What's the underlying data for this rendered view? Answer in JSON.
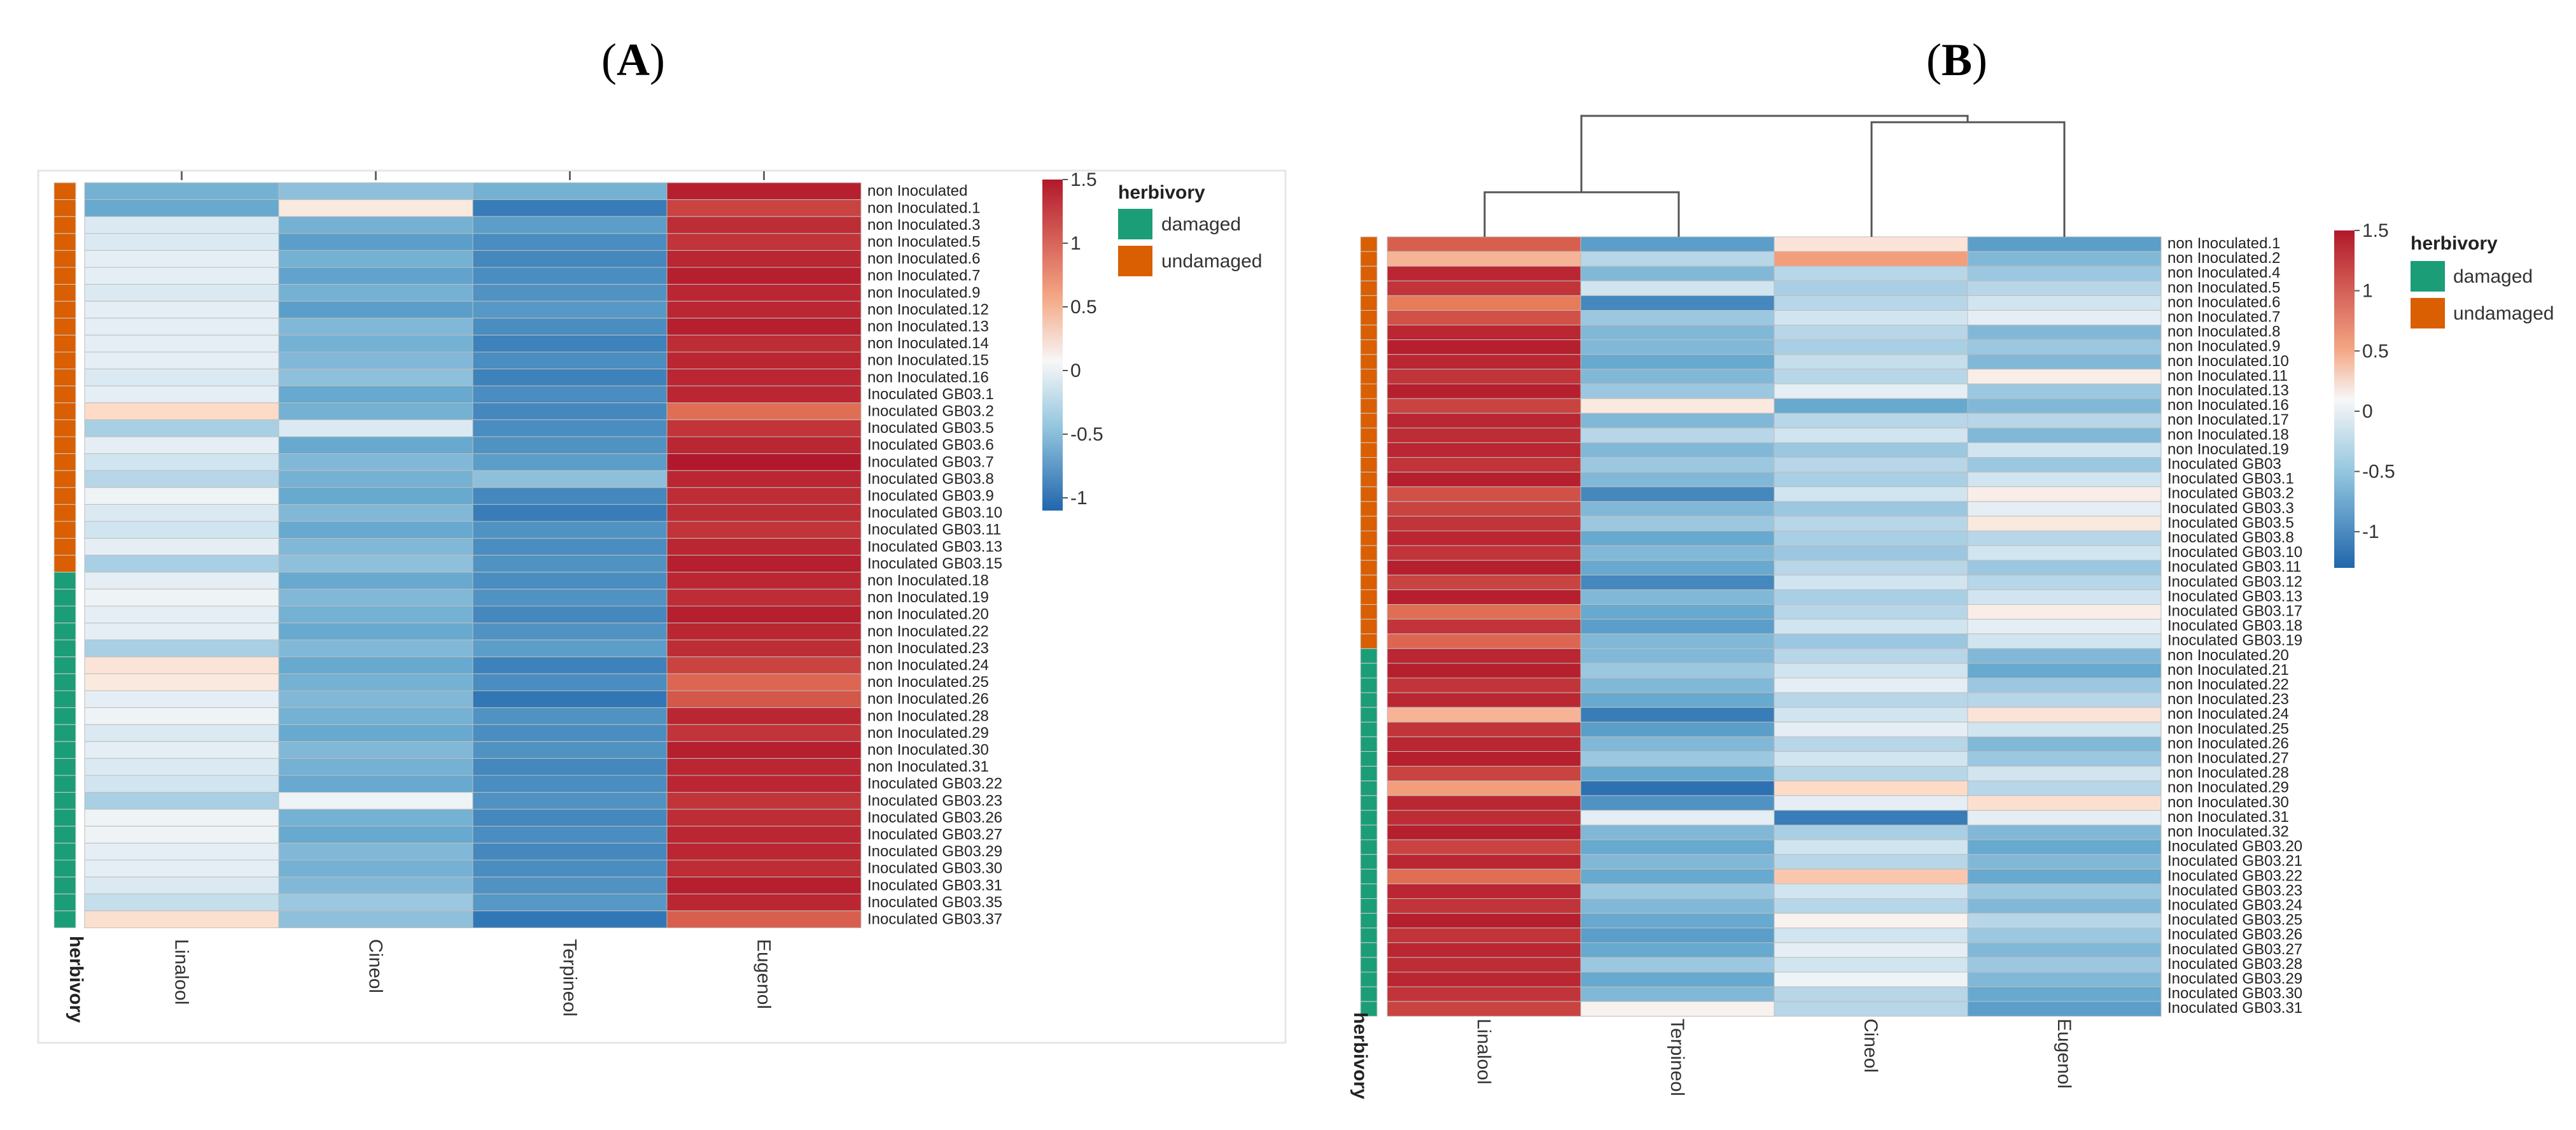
{
  "chart_data": [
    {
      "type": "heatmap",
      "panel": "(A)",
      "panel_parts": {
        "open": "(",
        "letter": "A",
        "close": ")"
      },
      "columns": [
        "Linalool",
        "Cineol",
        "Terpineol",
        "Eugenol"
      ],
      "rows": [
        "non Inoculated",
        "non Inoculated.1",
        "non Inoculated.3",
        "non Inoculated.5",
        "non Inoculated.6",
        "non Inoculated.7",
        "non Inoculated.9",
        "non Inoculated.12",
        "non Inoculated.13",
        "non Inoculated.14",
        "non Inoculated.15",
        "non Inoculated.16",
        "Inoculated GB03.1",
        "Inoculated GB03.2",
        "Inoculated GB03.5",
        "Inoculated GB03.6",
        "Inoculated GB03.7",
        "Inoculated GB03.8",
        "Inoculated GB03.9",
        "Inoculated GB03.10",
        "Inoculated GB03.11",
        "Inoculated GB03.13",
        "Inoculated GB03.15",
        "non Inoculated.18",
        "non Inoculated.19",
        "non Inoculated.20",
        "non Inoculated.22",
        "non Inoculated.23",
        "non Inoculated.24",
        "non Inoculated.25",
        "non Inoculated.26",
        "non Inoculated.28",
        "non Inoculated.29",
        "non Inoculated.30",
        "non Inoculated.31",
        "Inoculated GB03.22",
        "Inoculated GB03.23",
        "Inoculated GB03.26",
        "Inoculated GB03.27",
        "Inoculated GB03.29",
        "Inoculated GB03.30",
        "Inoculated GB03.31",
        "Inoculated GB03.35",
        "Inoculated GB03.37"
      ],
      "herbivory": [
        "undamaged",
        "undamaged",
        "undamaged",
        "undamaged",
        "undamaged",
        "undamaged",
        "undamaged",
        "undamaged",
        "undamaged",
        "undamaged",
        "undamaged",
        "undamaged",
        "undamaged",
        "undamaged",
        "undamaged",
        "undamaged",
        "undamaged",
        "undamaged",
        "undamaged",
        "undamaged",
        "undamaged",
        "undamaged",
        "undamaged",
        "damaged",
        "damaged",
        "damaged",
        "damaged",
        "damaged",
        "damaged",
        "damaged",
        "damaged",
        "damaged",
        "damaged",
        "damaged",
        "damaged",
        "damaged",
        "damaged",
        "damaged",
        "damaged",
        "damaged",
        "damaged",
        "damaged",
        "damaged",
        "damaged"
      ],
      "values": [
        [
          -0.55,
          -0.45,
          -0.55,
          1.45
        ],
        [
          -0.6,
          0.15,
          -1.0,
          1.2
        ],
        [
          -0.15,
          -0.55,
          -0.7,
          1.35
        ],
        [
          -0.15,
          -0.7,
          -0.85,
          1.3
        ],
        [
          -0.1,
          -0.55,
          -0.9,
          1.4
        ],
        [
          -0.1,
          -0.65,
          -0.85,
          1.45
        ],
        [
          -0.15,
          -0.55,
          -0.8,
          1.4
        ],
        [
          -0.1,
          -0.7,
          -0.75,
          1.4
        ],
        [
          -0.1,
          -0.5,
          -0.85,
          1.45
        ],
        [
          -0.1,
          -0.55,
          -0.95,
          1.35
        ],
        [
          -0.1,
          -0.5,
          -0.85,
          1.4
        ],
        [
          -0.15,
          -0.45,
          -0.95,
          1.4
        ],
        [
          -0.1,
          -0.6,
          -0.85,
          1.4
        ],
        [
          0.3,
          -0.55,
          -0.9,
          0.9
        ],
        [
          -0.35,
          -0.15,
          -0.85,
          1.3
        ],
        [
          -0.1,
          -0.6,
          -0.8,
          1.4
        ],
        [
          -0.2,
          -0.5,
          -0.7,
          1.5
        ],
        [
          -0.3,
          -0.55,
          -0.45,
          1.4
        ],
        [
          -0.05,
          -0.6,
          -0.9,
          1.35
        ],
        [
          -0.15,
          -0.5,
          -1.0,
          1.35
        ],
        [
          -0.2,
          -0.6,
          -0.8,
          1.3
        ],
        [
          -0.1,
          -0.5,
          -0.85,
          1.4
        ],
        [
          -0.35,
          -0.45,
          -0.8,
          1.45
        ],
        [
          -0.1,
          -0.6,
          -0.85,
          1.4
        ],
        [
          -0.05,
          -0.5,
          -0.8,
          1.35
        ],
        [
          -0.1,
          -0.55,
          -0.9,
          1.45
        ],
        [
          -0.1,
          -0.6,
          -0.8,
          1.4
        ],
        [
          -0.35,
          -0.5,
          -0.7,
          1.35
        ],
        [
          0.2,
          -0.6,
          -0.95,
          1.2
        ],
        [
          0.15,
          -0.55,
          -0.85,
          0.95
        ],
        [
          -0.1,
          -0.5,
          -1.05,
          1.05
        ],
        [
          -0.05,
          -0.55,
          -0.8,
          1.4
        ],
        [
          -0.15,
          -0.6,
          -0.85,
          1.3
        ],
        [
          -0.1,
          -0.5,
          -0.8,
          1.45
        ],
        [
          -0.15,
          -0.55,
          -0.9,
          1.4
        ],
        [
          -0.2,
          -0.6,
          -0.85,
          1.4
        ],
        [
          -0.35,
          -0.05,
          -0.8,
          1.3
        ],
        [
          -0.05,
          -0.55,
          -0.9,
          1.35
        ],
        [
          -0.05,
          -0.6,
          -0.85,
          1.4
        ],
        [
          -0.1,
          -0.5,
          -0.9,
          1.4
        ],
        [
          -0.1,
          -0.55,
          -0.85,
          1.35
        ],
        [
          -0.15,
          -0.5,
          -0.8,
          1.45
        ],
        [
          -0.25,
          -0.4,
          -0.75,
          1.4
        ],
        [
          0.25,
          -0.45,
          -1.05,
          1.0
        ]
      ],
      "colorbar": {
        "min": -1.1,
        "max": 1.5,
        "ticks": [
          "1.5",
          "1",
          "0.5",
          "0",
          "-0.5",
          "-1"
        ],
        "tick_values": [
          1.5,
          1,
          0.5,
          0,
          -0.5,
          -1
        ]
      },
      "legend": {
        "title": "herbivory",
        "entries": [
          "damaged",
          "undamaged"
        ]
      },
      "annotation_label": "herbivory"
    },
    {
      "type": "heatmap",
      "panel": "(B)",
      "panel_parts": {
        "open": "(",
        "letter": "B",
        "close": ")"
      },
      "columns": [
        "Linalool",
        "Terpineol",
        "Cineol",
        "Eugenol"
      ],
      "rows": [
        "non Inoculated.1",
        "non Inoculated.2",
        "non Inoculated.4",
        "non Inoculated.5",
        "non Inoculated.6",
        "non Inoculated.7",
        "non Inoculated.8",
        "non Inoculated.9",
        "non Inoculated.10",
        "non Inoculated.11",
        "non Inoculated.13",
        "non Inoculated.16",
        "non Inoculated.17",
        "non Inoculated.18",
        "non Inoculated.19",
        "Inoculated GB03",
        "Inoculated GB03.1",
        "Inoculated GB03.2",
        "Inoculated GB03.3",
        "Inoculated GB03.5",
        "Inoculated GB03.8",
        "Inoculated GB03.10",
        "Inoculated GB03.11",
        "Inoculated GB03.12",
        "Inoculated GB03.13",
        "Inoculated GB03.17",
        "Inoculated GB03.18",
        "Inoculated GB03.19",
        "non Inoculated.20",
        "non Inoculated.21",
        "non Inoculated.22",
        "non Inoculated.23",
        "non Inoculated.24",
        "non Inoculated.25",
        "non Inoculated.26",
        "non Inoculated.27",
        "non Inoculated.28",
        "non Inoculated.29",
        "non Inoculated.30",
        "non Inoculated.31",
        "non Inoculated.32",
        "Inoculated GB03.20",
        "Inoculated GB03.21",
        "Inoculated GB03.22",
        "Inoculated GB03.23",
        "Inoculated GB03.24",
        "Inoculated GB03.25",
        "Inoculated GB03.26",
        "Inoculated GB03.27",
        "Inoculated GB03.28",
        "Inoculated GB03.29",
        "Inoculated GB03.30",
        "Inoculated GB03.31"
      ],
      "herbivory": [
        "undamaged",
        "undamaged",
        "undamaged",
        "undamaged",
        "undamaged",
        "undamaged",
        "undamaged",
        "undamaged",
        "undamaged",
        "undamaged",
        "undamaged",
        "undamaged",
        "undamaged",
        "undamaged",
        "undamaged",
        "undamaged",
        "undamaged",
        "undamaged",
        "undamaged",
        "undamaged",
        "undamaged",
        "undamaged",
        "undamaged",
        "undamaged",
        "undamaged",
        "undamaged",
        "undamaged",
        "undamaged",
        "damaged",
        "damaged",
        "damaged",
        "damaged",
        "damaged",
        "damaged",
        "damaged",
        "damaged",
        "damaged",
        "damaged",
        "damaged",
        "damaged",
        "damaged",
        "damaged",
        "damaged",
        "damaged",
        "damaged",
        "damaged",
        "damaged",
        "damaged",
        "damaged",
        "damaged",
        "damaged",
        "damaged",
        "damaged"
      ],
      "values": [
        [
          1.0,
          -0.7,
          0.2,
          -0.7
        ],
        [
          0.5,
          -0.3,
          0.6,
          -0.5
        ],
        [
          1.4,
          -0.5,
          -0.3,
          -0.4
        ],
        [
          1.3,
          -0.2,
          -0.35,
          -0.3
        ],
        [
          0.8,
          -0.9,
          -0.3,
          -0.2
        ],
        [
          1.1,
          -0.4,
          -0.2,
          -0.1
        ],
        [
          1.4,
          -0.5,
          -0.3,
          -0.5
        ],
        [
          1.45,
          -0.5,
          -0.35,
          -0.4
        ],
        [
          1.4,
          -0.6,
          -0.25,
          -0.5
        ],
        [
          1.3,
          -0.5,
          -0.3,
          0.1
        ],
        [
          1.45,
          -0.4,
          -0.1,
          -0.4
        ],
        [
          1.2,
          0.15,
          -0.6,
          -0.5
        ],
        [
          1.4,
          -0.5,
          -0.3,
          -0.3
        ],
        [
          1.35,
          -0.3,
          -0.2,
          -0.5
        ],
        [
          1.4,
          -0.5,
          -0.4,
          -0.2
        ],
        [
          1.3,
          -0.4,
          -0.3,
          -0.4
        ],
        [
          1.45,
          -0.5,
          -0.35,
          -0.2
        ],
        [
          1.1,
          -0.9,
          -0.2,
          0.1
        ],
        [
          1.2,
          -0.5,
          -0.4,
          -0.1
        ],
        [
          1.3,
          -0.4,
          -0.3,
          0.15
        ],
        [
          1.4,
          -0.6,
          -0.35,
          -0.3
        ],
        [
          1.3,
          -0.5,
          -0.4,
          -0.2
        ],
        [
          1.45,
          -0.6,
          -0.3,
          -0.4
        ],
        [
          1.2,
          -0.9,
          -0.2,
          -0.3
        ],
        [
          1.45,
          -0.5,
          -0.35,
          -0.2
        ],
        [
          0.9,
          -0.6,
          -0.3,
          0.1
        ],
        [
          1.3,
          -0.7,
          -0.2,
          -0.1
        ],
        [
          0.95,
          -0.5,
          -0.4,
          -0.2
        ],
        [
          1.4,
          -0.5,
          -0.3,
          -0.5
        ],
        [
          1.45,
          -0.4,
          -0.2,
          -0.6
        ],
        [
          1.3,
          -0.5,
          -0.1,
          -0.4
        ],
        [
          1.4,
          -0.6,
          -0.3,
          -0.3
        ],
        [
          0.5,
          -1.0,
          -0.2,
          0.2
        ],
        [
          1.3,
          -0.7,
          -0.1,
          -0.2
        ],
        [
          1.4,
          -0.5,
          -0.3,
          -0.5
        ],
        [
          1.45,
          -0.4,
          -0.2,
          -0.4
        ],
        [
          1.2,
          -0.6,
          -0.3,
          -0.2
        ],
        [
          0.6,
          -1.1,
          0.3,
          -0.3
        ],
        [
          1.4,
          -0.8,
          -0.1,
          0.25
        ],
        [
          1.35,
          -0.1,
          -1.0,
          -0.1
        ],
        [
          1.45,
          -0.5,
          -0.35,
          -0.5
        ],
        [
          1.2,
          -0.6,
          -0.2,
          -0.6
        ],
        [
          1.4,
          -0.5,
          -0.3,
          -0.5
        ],
        [
          0.9,
          -0.6,
          0.4,
          -0.6
        ],
        [
          1.4,
          -0.4,
          -0.2,
          -0.4
        ],
        [
          1.3,
          -0.5,
          -0.3,
          -0.5
        ],
        [
          1.45,
          -0.6,
          0.05,
          -0.3
        ],
        [
          1.3,
          -0.7,
          -0.2,
          -0.4
        ],
        [
          1.4,
          -0.6,
          -0.1,
          -0.5
        ],
        [
          1.35,
          -0.4,
          -0.2,
          -0.4
        ],
        [
          1.4,
          -0.6,
          -0.05,
          -0.5
        ],
        [
          1.3,
          -0.5,
          -0.3,
          -0.6
        ],
        [
          1.2,
          0.05,
          -0.3,
          -0.7
        ]
      ],
      "colorbar": {
        "min": -1.3,
        "max": 1.5,
        "ticks": [
          "1.5",
          "1",
          "0.5",
          "0",
          "-0.5",
          "-1"
        ],
        "tick_values": [
          1.5,
          1,
          0.5,
          0,
          -0.5,
          -1
        ]
      },
      "legend": {
        "title": "herbivory",
        "entries": [
          "damaged",
          "undamaged"
        ]
      },
      "annotation_label": "herbivory",
      "dendrogram": {
        "order": [
          "Linalool",
          "Terpineol",
          "Cineol",
          "Eugenol"
        ],
        "merges": [
          [
            "Linalool",
            "Terpineol"
          ],
          [
            "Cineol",
            "Eugenol"
          ],
          [
            "Linalool+Terpineol",
            "Cineol+Eugenol"
          ]
        ]
      }
    }
  ],
  "colors": {
    "damaged": "#1b9e77",
    "undamaged": "#d95f02",
    "high": "#b2182b",
    "mid": "#f7f7f7",
    "low": "#2166ac"
  }
}
